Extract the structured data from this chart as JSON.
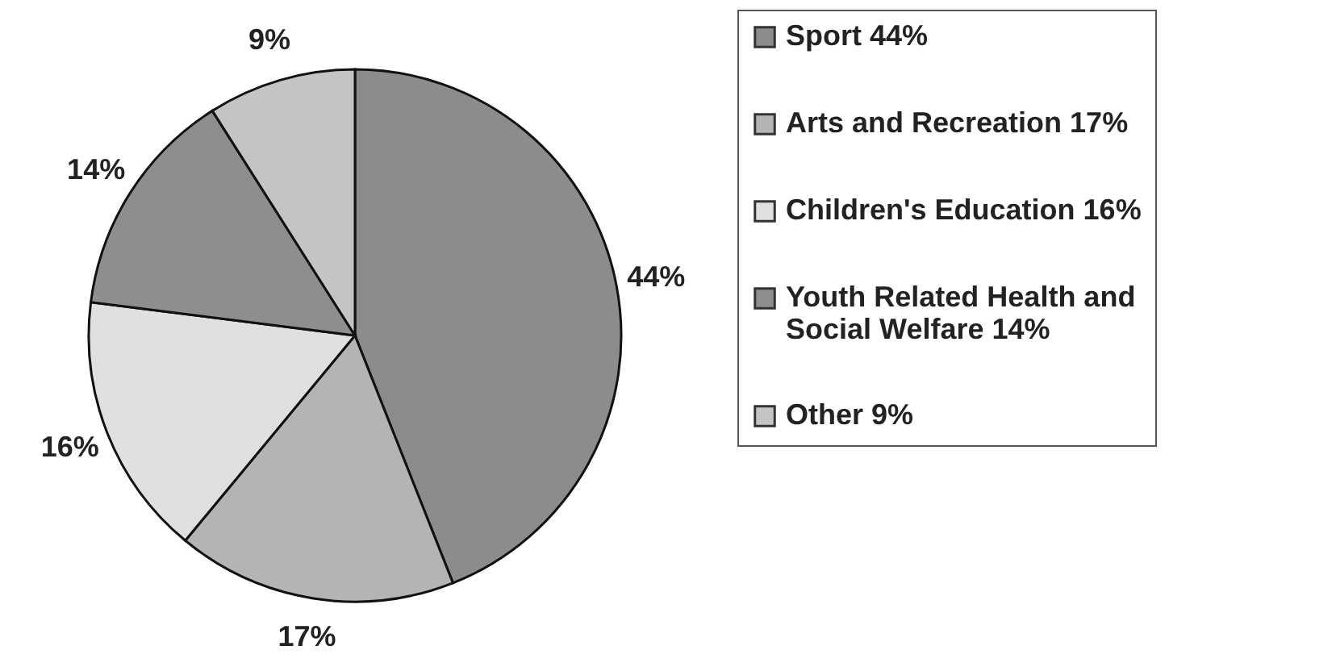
{
  "chart_data": {
    "type": "pie",
    "categories": [
      "Sport 44%",
      "Arts and Recreation 17%",
      "Children's Education 16%",
      "Youth Related Health and Social Welfare 14%",
      "Other 9%"
    ],
    "values": [
      44,
      17,
      16,
      14,
      9
    ],
    "value_labels": [
      "44%",
      "17%",
      "16%",
      "14%",
      "9%"
    ],
    "colors": [
      "#8c8c8c",
      "#b4b4b4",
      "#e0e0e0",
      "#8e8e8e",
      "#c4c4c4"
    ],
    "legend": "right"
  }
}
